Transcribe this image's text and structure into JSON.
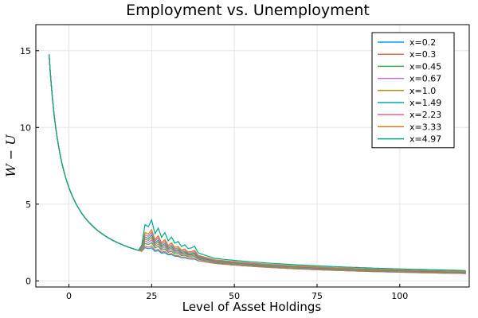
{
  "chart_data": {
    "type": "line",
    "title": "Employment vs. Unemployment",
    "xlabel": "Level of Asset Holdings",
    "ylabel": "W − U",
    "xlim": [
      -10,
      121
    ],
    "ylim": [
      -0.4,
      16.7
    ],
    "xticks": [
      0,
      25,
      50,
      75,
      100
    ],
    "yticks": [
      0,
      5,
      10,
      15
    ],
    "grid": true,
    "legend_position": "top-right",
    "spike_pattern": [
      0,
      1.0,
      0.95,
      1.3,
      0.7,
      1.0,
      0.6,
      0.85,
      0.5,
      0.7,
      0.45,
      0.55,
      0.35,
      0.45,
      0.3,
      0.35,
      0.25
    ],
    "series": [
      {
        "name": "x=0.2",
        "color": "#009AFA",
        "shift": 0.0,
        "spike": 0.3
      },
      {
        "name": "x=0.3",
        "color": "#E26F46",
        "shift": 0.0,
        "spike": 0.4
      },
      {
        "name": "x=0.45",
        "color": "#3DA44E",
        "shift": 0.05,
        "spike": 0.5
      },
      {
        "name": "x=0.67",
        "color": "#C371D2",
        "shift": 0.08,
        "spike": 0.6
      },
      {
        "name": "x=1.0",
        "color": "#AC8E18",
        "shift": 0.1,
        "spike": 0.7
      },
      {
        "name": "x=1.49",
        "color": "#00A9AD",
        "shift": 0.12,
        "spike": 0.8
      },
      {
        "name": "x=2.23",
        "color": "#ED5E93",
        "shift": 0.15,
        "spike": 0.9
      },
      {
        "name": "x=3.33",
        "color": "#C68225",
        "shift": 0.18,
        "spike": 1.0
      },
      {
        "name": "x=4.97",
        "color": "#00A98D",
        "shift": 0.25,
        "spike": 1.4
      }
    ]
  }
}
